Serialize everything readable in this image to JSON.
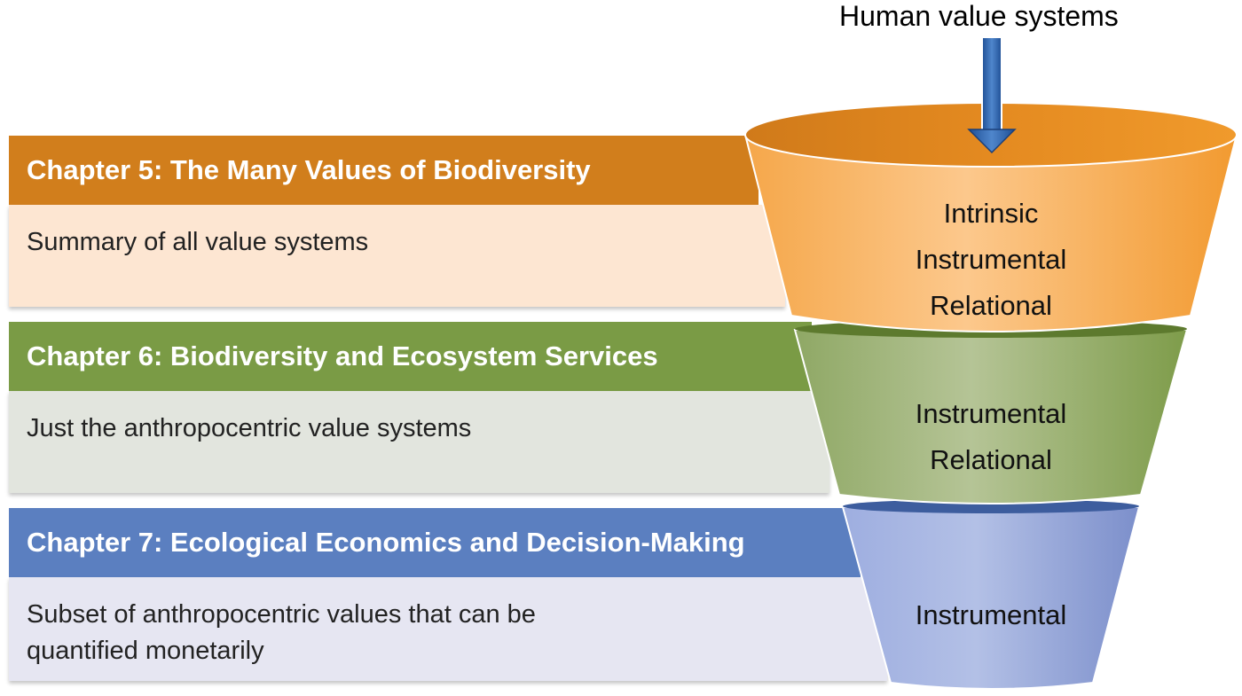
{
  "title": "Human value systems",
  "panels": [
    {
      "heading": "Chapter 5: The Many Values of Biodiversity",
      "text": [
        "Summary of all value systems"
      ],
      "color": "#d17e1c"
    },
    {
      "heading": "Chapter 6: Biodiversity and Ecosystem Services",
      "text": [
        "Just the anthropocentric value systems"
      ],
      "color": "#7a9b45"
    },
    {
      "heading": "Chapter 7: Ecological Economics and Decision-Making",
      "text": [
        "Subset of anthropocentric values that can be",
        "quantified monetarily"
      ],
      "color": "#5b7fc0"
    }
  ],
  "funnel": [
    {
      "labels": [
        "Intrinsic",
        "Instrumental",
        "Relational"
      ]
    },
    {
      "labels": [
        "Instrumental",
        "Relational"
      ]
    },
    {
      "labels": [
        "Instrumental"
      ]
    }
  ]
}
